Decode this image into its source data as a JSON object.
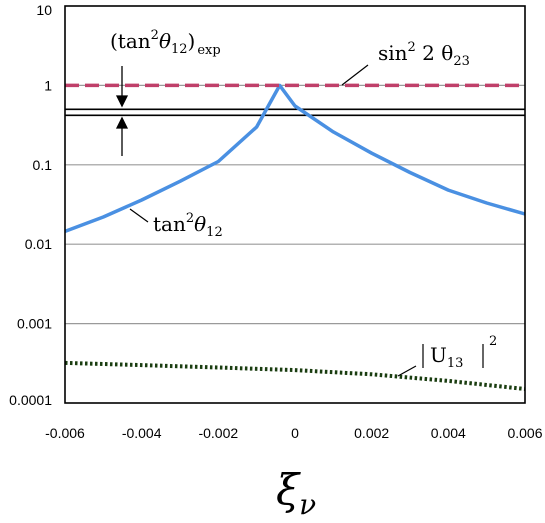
{
  "chart_data": {
    "type": "line",
    "y_scale": "log",
    "xlim": [
      -0.006,
      0.006
    ],
    "ylim": [
      0.0001,
      10
    ],
    "grid": "horizontal",
    "x_ticks": [
      "-0.006",
      "-0.004",
      "-0.002",
      "0",
      "0.002",
      "0.004",
      "0.006"
    ],
    "x_tick_values": [
      -0.006,
      -0.004,
      -0.002,
      0,
      0.002,
      0.004,
      0.006
    ],
    "y_ticks": [
      "10",
      "1",
      "0.1",
      "0.01",
      "0.001",
      "0.0001"
    ],
    "y_tick_values": [
      10,
      1,
      0.1,
      0.01,
      0.001,
      0.0001
    ],
    "xlabel": {
      "main": "ξ",
      "sub": "ν"
    },
    "series": [
      {
        "name": "tan²θ12",
        "style": "solid",
        "color": "#4a90e2",
        "x": [
          -0.006,
          -0.005,
          -0.004,
          -0.003,
          -0.002,
          -0.001,
          -0.0004,
          0.0,
          0.001,
          0.002,
          0.003,
          0.004,
          0.005,
          0.006
        ],
        "y": [
          0.0145,
          0.022,
          0.036,
          0.062,
          0.11,
          0.3,
          1.0,
          0.55,
          0.26,
          0.14,
          0.08,
          0.048,
          0.033,
          0.024
        ]
      },
      {
        "name": "sin² 2 θ23",
        "style": "dashed",
        "color": "#c0406a",
        "x": [
          -0.006,
          0.006
        ],
        "y": [
          1.0,
          1.0
        ]
      },
      {
        "name": "|U13|²",
        "style": "dotted",
        "color": "#1a3d10",
        "x": [
          -0.006,
          -0.004,
          -0.002,
          0.0,
          0.002,
          0.004,
          0.006
        ],
        "y": [
          0.00032,
          0.0003,
          0.00028,
          0.00026,
          0.00023,
          0.00019,
          0.00015
        ]
      }
    ],
    "bands": [
      {
        "name": "(tan²θ12)exp",
        "y_upper": 0.5,
        "y_lower": 0.42,
        "color": "#000000"
      }
    ],
    "annotations": {
      "tan_exp": {
        "prefix": "(tan",
        "sup": "2",
        "theta": "θ",
        "sub": "12",
        "close": ")",
        "subscript": "exp"
      },
      "sin23": {
        "prefix": "sin",
        "sup": "2",
        "mid": " 2 θ",
        "sub": "23"
      },
      "tan12": {
        "prefix": "tan",
        "sup": "2",
        "theta": "θ",
        "sub": "12"
      },
      "u13": {
        "prefix": "U",
        "sub": "13",
        "sup": "2"
      }
    },
    "colors": {
      "grid": "#9a9a9a",
      "axis": "#000000"
    }
  }
}
